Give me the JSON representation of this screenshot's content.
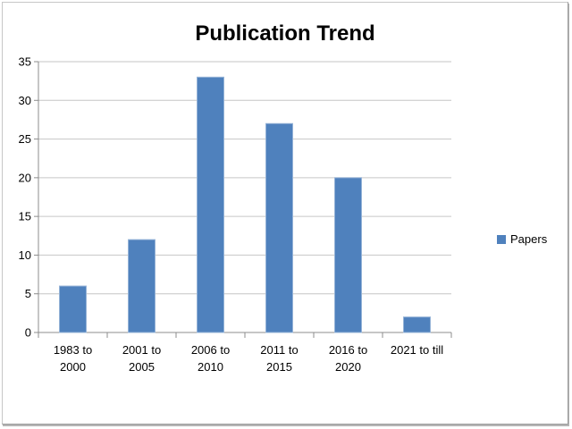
{
  "chart_data": {
    "type": "bar",
    "title": "Publication Trend",
    "categories": [
      "1983 to 2000",
      "2001 to 2005",
      "2006 to 2010",
      "2011 to 2015",
      "2016 to 2020",
      "2021 to till"
    ],
    "category_labels_lines": [
      [
        "1983 to",
        "2000"
      ],
      [
        "2001 to",
        "2005"
      ],
      [
        "2006 to",
        "2010"
      ],
      [
        "2011 to",
        "2015"
      ],
      [
        "2016 to",
        "2020"
      ],
      [
        "2021 to till"
      ]
    ],
    "series": [
      {
        "name": "Papers",
        "values": [
          6,
          12,
          33,
          27,
          20,
          2
        ]
      }
    ],
    "xlabel": "",
    "ylabel": "",
    "ylim": [
      0,
      35
    ],
    "yticks": [
      0,
      5,
      10,
      15,
      20,
      25,
      30,
      35
    ],
    "grid": true,
    "legend": {
      "position": "right",
      "entries": [
        "Papers"
      ]
    },
    "colors": {
      "bar_fill": "#4f81bd",
      "bar_edge": "#95b3d7",
      "gridline": "#c6c6c6",
      "axis": "#8c8c8c",
      "text": "#000000",
      "background": "#ffffff",
      "frame_border": "#b5b5b5"
    }
  }
}
